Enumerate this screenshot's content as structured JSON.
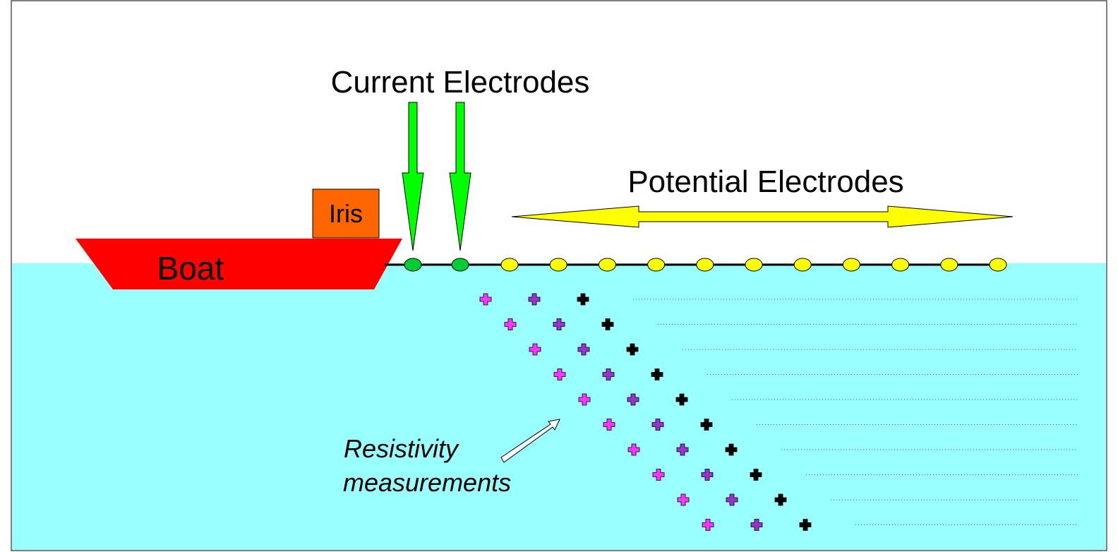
{
  "labels": {
    "current": "Current Electrodes",
    "potential": "Potential Electrodes",
    "iris": "Iris",
    "boat": "Boat",
    "resistivity": [
      "Resistivity",
      "measurements"
    ]
  }
}
